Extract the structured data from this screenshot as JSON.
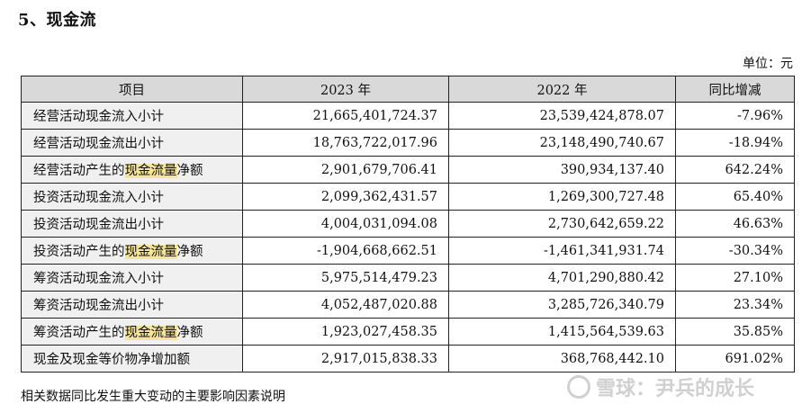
{
  "section_title": "5、现金流",
  "unit_label": "单位：元",
  "table": {
    "headers": [
      "项目",
      "2023 年",
      "2022 年",
      "同比增减"
    ],
    "rows": [
      {
        "pre": "经营活动现金流入小计",
        "hl": "",
        "post": "",
        "y2023": "21,665,401,724.37",
        "y2022": "23,539,424,878.07",
        "yoy": "-7.96%"
      },
      {
        "pre": "经营活动现金流出小计",
        "hl": "",
        "post": "",
        "y2023": "18,763,722,017.96",
        "y2022": "23,148,490,740.67",
        "yoy": "-18.94%"
      },
      {
        "pre": "经营活动产生的",
        "hl": "现金流量",
        "post": "净额",
        "y2023": "2,901,679,706.41",
        "y2022": "390,934,137.40",
        "yoy": "642.24%"
      },
      {
        "pre": "投资活动现金流入小计",
        "hl": "",
        "post": "",
        "y2023": "2,099,362,431.57",
        "y2022": "1,269,300,727.48",
        "yoy": "65.40%"
      },
      {
        "pre": "投资活动现金流出小计",
        "hl": "",
        "post": "",
        "y2023": "4,004,031,094.08",
        "y2022": "2,730,642,659.22",
        "yoy": "46.63%"
      },
      {
        "pre": "投资活动产生的",
        "hl": "现金流量",
        "post": "净额",
        "y2023": "-1,904,668,662.51",
        "y2022": "-1,461,341,931.74",
        "yoy": "-30.34%"
      },
      {
        "pre": "筹资活动现金流入小计",
        "hl": "",
        "post": "",
        "y2023": "5,975,514,479.23",
        "y2022": "4,701,290,880.42",
        "yoy": "27.10%"
      },
      {
        "pre": "筹资活动现金流出小计",
        "hl": "",
        "post": "",
        "y2023": "4,052,487,020.88",
        "y2022": "3,285,726,340.79",
        "yoy": "23.34%"
      },
      {
        "pre": "筹资活动产生的",
        "hl": "现金流量",
        "post": "净额",
        "y2023": "1,923,027,458.35",
        "y2022": "1,415,564,539.63",
        "yoy": "35.85%"
      },
      {
        "pre": "现金及现金等价物净增加额",
        "hl": "",
        "post": "",
        "y2023": "2,917,015,838.33",
        "y2022": "368,768,442.10",
        "yoy": "691.02%"
      }
    ]
  },
  "footnote": "相关数据同比发生重大变动的主要影响因素说明",
  "watermark": "雪球：尹兵的成长"
}
